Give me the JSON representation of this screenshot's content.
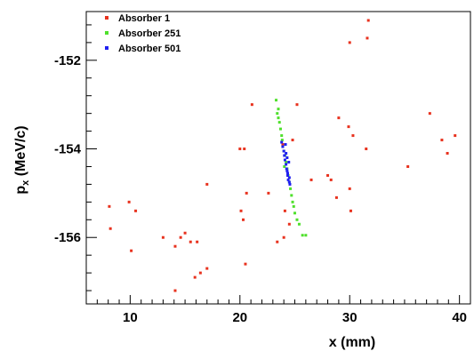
{
  "chart_data": {
    "type": "scatter",
    "title": "",
    "xlabel": "x (mm)",
    "ylabel_main": "p",
    "ylabel_sub": "x",
    "ylabel_unit": " (MeV/c)",
    "xlim": [
      6,
      41
    ],
    "ylim": [
      -157.5,
      -150.9
    ],
    "x_major_ticks": [
      10,
      20,
      30,
      40
    ],
    "x_minor_step": 1,
    "y_major_ticks": [
      -156,
      -154,
      -152
    ],
    "y_minor_step": 0.4,
    "grid": false,
    "legend_position": "top-left",
    "series": [
      {
        "name": "Absorber 1",
        "color": "#e8321e",
        "points": [
          [
            8.1,
            -155.3
          ],
          [
            8.2,
            -155.8
          ],
          [
            9.9,
            -155.2
          ],
          [
            10.1,
            -156.3
          ],
          [
            10.5,
            -155.4
          ],
          [
            13.0,
            -156.0
          ],
          [
            14.1,
            -156.2
          ],
          [
            14.1,
            -157.2
          ],
          [
            14.6,
            -156.0
          ],
          [
            15.0,
            -155.9
          ],
          [
            15.5,
            -156.1
          ],
          [
            15.9,
            -156.9
          ],
          [
            16.1,
            -156.1
          ],
          [
            16.4,
            -156.8
          ],
          [
            17.0,
            -154.8
          ],
          [
            17.0,
            -156.7
          ],
          [
            20.0,
            -154.0
          ],
          [
            20.1,
            -155.4
          ],
          [
            20.3,
            -155.6
          ],
          [
            20.4,
            -154.0
          ],
          [
            20.5,
            -156.6
          ],
          [
            20.6,
            -155.0
          ],
          [
            21.1,
            -153.0
          ],
          [
            22.6,
            -155.0
          ],
          [
            23.4,
            -156.1
          ],
          [
            23.9,
            -153.9
          ],
          [
            24.1,
            -155.4
          ],
          [
            24.5,
            -155.7
          ],
          [
            24.0,
            -156.0
          ],
          [
            24.8,
            -153.8
          ],
          [
            25.2,
            -153.0
          ],
          [
            26.5,
            -154.7
          ],
          [
            28.0,
            -154.6
          ],
          [
            28.3,
            -154.7
          ],
          [
            28.8,
            -155.1
          ],
          [
            29.0,
            -153.3
          ],
          [
            29.9,
            -153.5
          ],
          [
            30.0,
            -154.9
          ],
          [
            30.0,
            -151.6
          ],
          [
            30.1,
            -155.4
          ],
          [
            30.3,
            -153.7
          ],
          [
            31.5,
            -154.0
          ],
          [
            31.6,
            -151.5
          ],
          [
            31.7,
            -151.1
          ],
          [
            35.3,
            -154.4
          ],
          [
            37.3,
            -153.2
          ],
          [
            38.4,
            -153.8
          ],
          [
            38.9,
            -154.1
          ],
          [
            39.6,
            -153.7
          ]
        ]
      },
      {
        "name": "Absorber 251",
        "color": "#4fe02c",
        "points": [
          [
            23.3,
            -152.9
          ],
          [
            23.4,
            -153.2
          ],
          [
            23.5,
            -153.3
          ],
          [
            23.6,
            -153.4
          ],
          [
            23.7,
            -153.55
          ],
          [
            23.8,
            -153.7
          ],
          [
            23.85,
            -153.8
          ],
          [
            23.9,
            -153.95
          ],
          [
            24.0,
            -154.05
          ],
          [
            24.1,
            -154.15
          ],
          [
            24.2,
            -154.3
          ],
          [
            24.3,
            -154.45
          ],
          [
            24.4,
            -154.6
          ],
          [
            24.5,
            -154.75
          ],
          [
            24.6,
            -154.9
          ],
          [
            24.7,
            -155.05
          ],
          [
            24.8,
            -155.2
          ],
          [
            24.9,
            -155.3
          ],
          [
            25.0,
            -155.45
          ],
          [
            25.2,
            -155.6
          ],
          [
            25.4,
            -155.7
          ],
          [
            25.7,
            -155.95
          ],
          [
            26.0,
            -155.95
          ],
          [
            23.5,
            -153.1
          ],
          [
            24.05,
            -154.4
          ]
        ]
      },
      {
        "name": "Absorber 501",
        "color": "#2020f0",
        "points": [
          [
            23.8,
            -153.85
          ],
          [
            23.9,
            -153.95
          ],
          [
            24.0,
            -154.05
          ],
          [
            24.05,
            -154.15
          ],
          [
            24.1,
            -154.25
          ],
          [
            24.2,
            -154.35
          ],
          [
            24.25,
            -154.45
          ],
          [
            24.3,
            -154.5
          ],
          [
            24.35,
            -154.6
          ],
          [
            24.4,
            -154.7
          ],
          [
            24.5,
            -154.75
          ],
          [
            24.45,
            -154.3
          ],
          [
            24.2,
            -154.1
          ],
          [
            24.35,
            -154.55
          ],
          [
            24.55,
            -154.8
          ],
          [
            24.15,
            -153.9
          ],
          [
            24.3,
            -154.2
          ],
          [
            24.5,
            -154.65
          ]
        ]
      }
    ]
  }
}
